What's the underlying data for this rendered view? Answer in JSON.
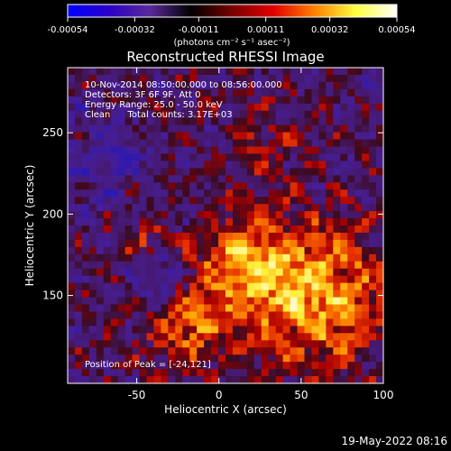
{
  "chart_data": {
    "type": "heatmap",
    "title": "Reconstructed RHESSI Image",
    "xlabel": "Heliocentric X (arcsec)",
    "ylabel": "Heliocentric Y (arcsec)",
    "xlim": [
      -92,
      100
    ],
    "ylim": [
      96,
      290
    ],
    "x_ticks": [
      -50,
      0,
      50,
      100
    ],
    "y_ticks": [
      150,
      200,
      250
    ],
    "colorbar": {
      "min": -0.00054,
      "max": 0.00054,
      "ticks": [
        "-0.00054",
        "-0.00032",
        "-0.00011",
        "0.00011",
        "0.00032",
        "0.00054"
      ],
      "unit_label": "(photons cm⁻² s⁻¹ asec⁻²)",
      "colors": [
        "#0000ff",
        "#2a00c8",
        "#5a2a9a",
        "#000000",
        "#7a0000",
        "#e00000",
        "#ff8000",
        "#ffff40",
        "#ffffff"
      ]
    },
    "annotations": [
      "10-Nov-2014 08:50:00.000 to 08:56:00.000",
      "Detectors: 3F 6F 9F, Att 0",
      "Energy Range: 25.0 - 50.0 keV",
      "Clean      Total counts: 3.17E+03"
    ],
    "peak_label": "Position of Peak = [-24,121]",
    "peak_position": [
      -24,
      121
    ],
    "grid": false
  },
  "footer": {
    "timestamp": "19-May-2022 08:16"
  }
}
